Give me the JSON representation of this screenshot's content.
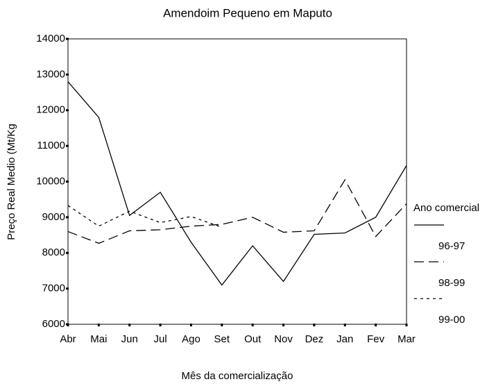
{
  "chart_data": {
    "type": "line",
    "title": "Amendoim Pequeno em Maputo",
    "x_label": "Mês da comercialização",
    "y_label": "Preço Real Medio (Mt/Kg",
    "legend_title": "Ano comercial",
    "categories": [
      "Abr",
      "Mai",
      "Jun",
      "Jul",
      "Ago",
      "Set",
      "Out",
      "Nov",
      "Dez",
      "Jan",
      "Fev",
      "Mar"
    ],
    "series": [
      {
        "name": "96-97",
        "color": "#000000",
        "dash": "solid",
        "values": [
          12800,
          11800,
          9050,
          9700,
          8300,
          7100,
          8200,
          7200,
          8520,
          8560,
          9000,
          10450
        ]
      },
      {
        "name": "98-99",
        "color": "#000000",
        "dash": "long",
        "values": [
          8600,
          8270,
          8620,
          8650,
          8750,
          8800,
          9000,
          8580,
          8620,
          10050,
          8460,
          9380
        ]
      },
      {
        "name": "99-00",
        "color": "#000000",
        "dash": "short",
        "values": [
          9330,
          8750,
          9170,
          8850,
          9020,
          8720,
          null,
          null,
          null,
          null,
          null,
          null
        ]
      }
    ],
    "ylim": [
      6000,
      14000
    ],
    "yticks": [
      6000,
      7000,
      8000,
      9000,
      10000,
      11000,
      12000,
      13000,
      14000
    ],
    "grid": false
  }
}
